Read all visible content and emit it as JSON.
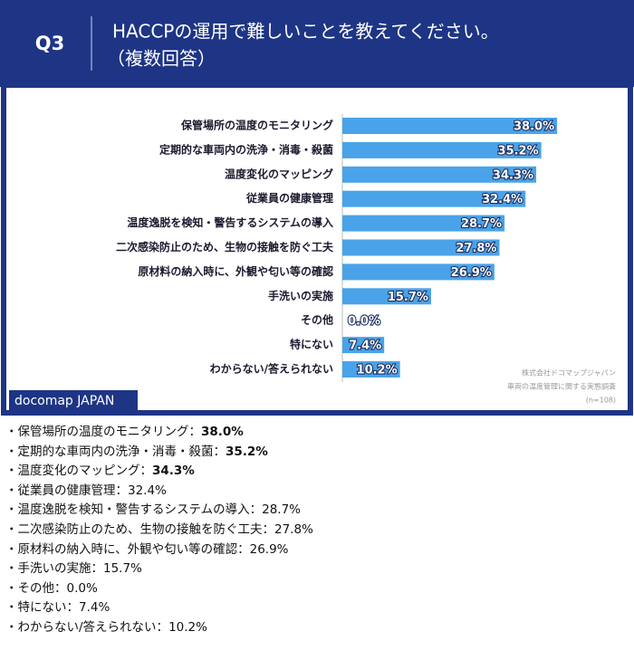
{
  "header": {
    "label": "Q3",
    "title": "HACCPの運用で難しいことを教えてください。",
    "subtitle": "（複数回答）"
  },
  "chart_data": {
    "type": "bar",
    "orientation": "horizontal",
    "categories": [
      "保管場所の温度のモニタリング",
      "定期的な車両内の洗浄・消毒・殺菌",
      "温度変化のマッピング",
      "従業員の健康管理",
      "温度逸脱を検知・警告するシステムの導入",
      "二次感染防止のため、生物の接触を防ぐ工夫",
      "原材料の納入時に、外観や匂い等の確認",
      "手洗いの実施",
      "その他",
      "特にない",
      "わからない/答えられない"
    ],
    "values": [
      38.0,
      35.2,
      34.3,
      32.4,
      28.7,
      27.8,
      26.9,
      15.7,
      0.0,
      7.4,
      10.2
    ],
    "value_labels": [
      "38.0%",
      "35.2%",
      "34.3%",
      "32.4%",
      "28.7%",
      "27.8%",
      "26.9%",
      "15.7%",
      "0.0%",
      "7.4%",
      "10.2%"
    ],
    "color": "#4aa3e8",
    "source": [
      "株式会社ドコマップジャパン",
      "車両の温度管理に関する実態調査",
      "(n=108)"
    ]
  },
  "brand": "docomap JAPAN",
  "list": [
    {
      "text": "・保管場所の温度のモニタリング：",
      "value": "38.0%",
      "bold": true
    },
    {
      "text": "・定期的な車両内の洗浄・消毒・殺菌：",
      "value": "35.2%",
      "bold": true
    },
    {
      "text": "・温度変化のマッピング：",
      "value": "34.3%",
      "bold": true
    },
    {
      "text": "・従業員の健康管理：",
      "value": "32.4%",
      "bold": false
    },
    {
      "text": "・温度逸脱を検知・警告するシステムの導入：",
      "value": "28.7%",
      "bold": false
    },
    {
      "text": "・二次感染防止のため、生物の接触を防ぐ工夫：",
      "value": "27.8%",
      "bold": false
    },
    {
      "text": "・原材料の納入時に、外観や匂い等の確認：",
      "value": "26.9%",
      "bold": false
    },
    {
      "text": "・手洗いの実施：",
      "value": "15.7%",
      "bold": false
    },
    {
      "text": "・その他：",
      "value": "0.0%",
      "bold": false
    },
    {
      "text": "・特にない：",
      "value": "7.4%",
      "bold": false
    },
    {
      "text": "・わからない/答えられない：",
      "value": "10.2%",
      "bold": false
    }
  ]
}
